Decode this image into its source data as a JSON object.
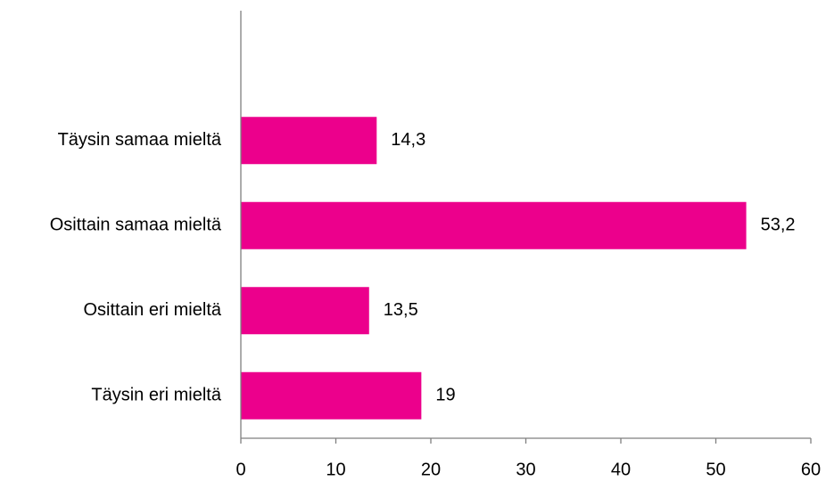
{
  "chart_data": {
    "type": "bar",
    "orientation": "horizontal",
    "categories": [
      "Täysin samaa mieltä",
      "Osittain samaa mieltä",
      "Osittain eri mieltä",
      "Täysin eri mieltä"
    ],
    "values": [
      14.3,
      53.2,
      13.5,
      19
    ],
    "value_labels": [
      "14,3",
      "53,2",
      "13,5",
      "19"
    ],
    "xlim": [
      0,
      60
    ],
    "x_ticks": [
      0,
      10,
      20,
      30,
      40,
      50,
      60
    ],
    "x_tick_labels": [
      "0",
      "10",
      "20",
      "30",
      "40",
      "50",
      "60"
    ],
    "grid": false,
    "legend": "none",
    "colors": {
      "bar": "#EC008C",
      "axis": "#7f7f7f",
      "text": "#000000"
    }
  }
}
